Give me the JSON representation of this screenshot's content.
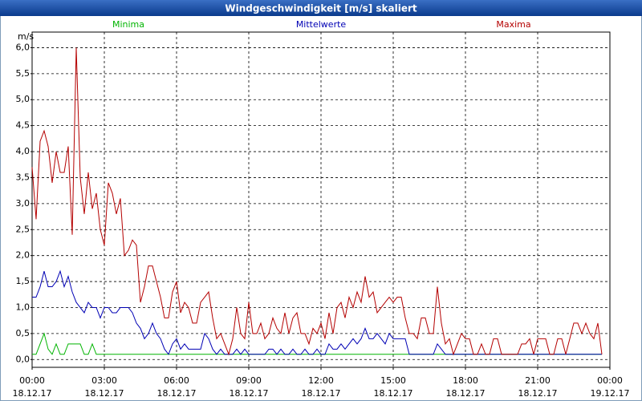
{
  "chart_data": {
    "type": "line",
    "title": "Windgeschwindigkeit [m/s] skaliert",
    "y_label": "m/s",
    "x": [
      0,
      10,
      20,
      30,
      40,
      50,
      60,
      70,
      80,
      90,
      100,
      110,
      120,
      130,
      140,
      150,
      160,
      170,
      180,
      190,
      200,
      210,
      220,
      230,
      240,
      250,
      260,
      270,
      280,
      290,
      300,
      310,
      320,
      330,
      340,
      350,
      360,
      370,
      380,
      390,
      400,
      410,
      420,
      430,
      440,
      450,
      460,
      470,
      480,
      490,
      500,
      510,
      520,
      530,
      540,
      550,
      560,
      570,
      580,
      590,
      600,
      610,
      620,
      630,
      640,
      650,
      660,
      670,
      680,
      690,
      700,
      710,
      720,
      730,
      740,
      750,
      760,
      770,
      780,
      790,
      800,
      810,
      820,
      830,
      840,
      850,
      860,
      870,
      880,
      890,
      900,
      910,
      920,
      930,
      940,
      950,
      960,
      970,
      980,
      990,
      1000,
      1010,
      1020,
      1030,
      1040,
      1050,
      1060,
      1070,
      1080,
      1090,
      1100,
      1110,
      1120,
      1130,
      1140,
      1150,
      1160,
      1170,
      1180,
      1190,
      1200,
      1210,
      1220,
      1230,
      1240,
      1250,
      1260,
      1270,
      1280,
      1290,
      1300,
      1310,
      1320,
      1330,
      1340,
      1350,
      1360,
      1370,
      1380,
      1390,
      1400,
      1410,
      1420
    ],
    "series": [
      {
        "name": "Minima",
        "color": "#00b400",
        "values": [
          0.1,
          0.1,
          0.3,
          0.5,
          0.2,
          0.1,
          0.3,
          0.1,
          0.1,
          0.3,
          0.3,
          0.3,
          0.3,
          0.1,
          0.1,
          0.3,
          0.1,
          0.1,
          0.1,
          0.1,
          0.1,
          0.1,
          0.1,
          0.1,
          0.1,
          0.1,
          0.1,
          0.1,
          0.1,
          0.1,
          0.1,
          0.1,
          0.1,
          0.1,
          0.1,
          0.1,
          0.1,
          0.1,
          0.1,
          0.1,
          0.1,
          0.1,
          0.1,
          0.1,
          0.1,
          0.1,
          0.1,
          0.1,
          0.1,
          0.1,
          0.1,
          0.1,
          0.1,
          0.1,
          0.1,
          0.1,
          0.1,
          0.1,
          0.1,
          0.1,
          0.1,
          0.1,
          0.1,
          0.1,
          0.1,
          0.1,
          0.1,
          0.1,
          0.1,
          0.1,
          0.1,
          0.1,
          0.1,
          0.1,
          0.1,
          0.1,
          0.1,
          0.1,
          0.1,
          0.1,
          0.1,
          0.1,
          0.1,
          0.1,
          0.1,
          0.1,
          0.1,
          0.1,
          0.1,
          0.1,
          0.1,
          0.1,
          0.1,
          0.1,
          0.1,
          0.1,
          0.1,
          0.1,
          0.1,
          0.1,
          0.1,
          0.1,
          0.1,
          0.1,
          0.1,
          0.1,
          0.1,
          0.1,
          0.1,
          0.1,
          0.1,
          0.1,
          0.1,
          0.1,
          0.1,
          0.1,
          0.1,
          0.1,
          0.1,
          0.1,
          0.1,
          0.1,
          0.1,
          0.1,
          0.1,
          0.1,
          0.1,
          0.1,
          0.1,
          0.1,
          0.1,
          0.1,
          0.1,
          0.1,
          0.1,
          0.1,
          0.1,
          0.1,
          0.1,
          0.1,
          0.1,
          0.1,
          0.1
        ]
      },
      {
        "name": "Mittelwerte",
        "color": "#0000b4",
        "values": [
          1.2,
          1.2,
          1.4,
          1.7,
          1.4,
          1.4,
          1.5,
          1.7,
          1.4,
          1.6,
          1.3,
          1.1,
          1.0,
          0.9,
          1.1,
          1.0,
          1.0,
          0.8,
          1.0,
          1.0,
          0.9,
          0.9,
          1.0,
          1.0,
          1.0,
          0.9,
          0.7,
          0.6,
          0.4,
          0.5,
          0.7,
          0.5,
          0.4,
          0.2,
          0.1,
          0.3,
          0.4,
          0.2,
          0.3,
          0.2,
          0.2,
          0.2,
          0.2,
          0.5,
          0.4,
          0.2,
          0.1,
          0.2,
          0.1,
          0.1,
          0.1,
          0.2,
          0.1,
          0.2,
          0.1,
          0.1,
          0.1,
          0.1,
          0.1,
          0.2,
          0.2,
          0.1,
          0.2,
          0.1,
          0.1,
          0.2,
          0.1,
          0.1,
          0.2,
          0.1,
          0.1,
          0.2,
          0.1,
          0.1,
          0.3,
          0.2,
          0.2,
          0.3,
          0.2,
          0.3,
          0.4,
          0.3,
          0.4,
          0.6,
          0.4,
          0.4,
          0.5,
          0.4,
          0.3,
          0.5,
          0.4,
          0.4,
          0.4,
          0.4,
          0.1,
          0.1,
          0.1,
          0.1,
          0.1,
          0.1,
          0.1,
          0.3,
          0.2,
          0.1,
          0.1,
          0.1,
          0.1,
          0.1,
          0.1,
          0.1,
          0.1,
          0.1,
          0.1,
          0.1,
          0.1,
          0.1,
          0.1,
          0.1,
          0.1,
          0.1,
          0.1,
          0.1,
          0.1,
          0.1,
          0.1,
          0.1,
          0.1,
          0.1,
          0.1,
          0.1,
          0.1,
          0.1,
          0.1,
          0.1,
          0.1,
          0.1,
          0.1,
          0.1,
          0.1,
          0.1,
          0.1,
          0.1,
          0.1
        ]
      },
      {
        "name": "Maxima",
        "color": "#b40000",
        "values": [
          3.7,
          2.7,
          4.2,
          4.4,
          4.1,
          3.4,
          4.0,
          3.6,
          3.6,
          4.1,
          2.4,
          6.0,
          3.5,
          2.8,
          3.6,
          2.9,
          3.2,
          2.5,
          2.2,
          3.4,
          3.2,
          2.8,
          3.1,
          2.0,
          2.1,
          2.3,
          2.2,
          1.1,
          1.4,
          1.8,
          1.8,
          1.5,
          1.2,
          0.8,
          0.8,
          1.3,
          1.5,
          0.9,
          1.1,
          1.0,
          0.7,
          0.7,
          1.1,
          1.2,
          1.3,
          0.8,
          0.4,
          0.5,
          0.3,
          0.1,
          0.4,
          1.0,
          0.5,
          0.4,
          1.1,
          0.5,
          0.5,
          0.7,
          0.4,
          0.5,
          0.8,
          0.6,
          0.5,
          0.9,
          0.5,
          0.8,
          0.9,
          0.5,
          0.5,
          0.3,
          0.6,
          0.5,
          0.7,
          0.4,
          0.9,
          0.5,
          1.0,
          1.1,
          0.8,
          1.2,
          1.0,
          1.3,
          1.1,
          1.6,
          1.2,
          1.3,
          0.9,
          1.0,
          1.1,
          1.2,
          1.1,
          1.2,
          1.2,
          0.8,
          0.5,
          0.5,
          0.4,
          0.8,
          0.8,
          0.5,
          0.5,
          1.4,
          0.7,
          0.3,
          0.4,
          0.1,
          0.3,
          0.5,
          0.4,
          0.4,
          0.1,
          0.1,
          0.3,
          0.1,
          0.1,
          0.4,
          0.4,
          0.1,
          0.1,
          0.1,
          0.1,
          0.1,
          0.3,
          0.3,
          0.4,
          0.1,
          0.4,
          0.4,
          0.4,
          0.1,
          0.1,
          0.4,
          0.4,
          0.1,
          0.4,
          0.7,
          0.7,
          0.5,
          0.7,
          0.5,
          0.4,
          0.7,
          0.1
        ]
      }
    ],
    "xlim": [
      0,
      1440
    ],
    "xticks": [
      {
        "value": 0,
        "label": "00:00",
        "date": "18.12.17"
      },
      {
        "value": 180,
        "label": "03:00",
        "date": "18.12.17"
      },
      {
        "value": 360,
        "label": "06:00",
        "date": "18.12.17"
      },
      {
        "value": 540,
        "label": "09:00",
        "date": "18.12.17"
      },
      {
        "value": 720,
        "label": "12:00",
        "date": "18.12.17"
      },
      {
        "value": 900,
        "label": "15:00",
        "date": "18.12.17"
      },
      {
        "value": 1080,
        "label": "18:00",
        "date": "18.12.17"
      },
      {
        "value": 1260,
        "label": "21:00",
        "date": "18.12.17"
      },
      {
        "value": 1440,
        "label": "00:00",
        "date": "19.12.17"
      }
    ],
    "ylim": [
      -0.15,
      6.3
    ],
    "yticks": [
      {
        "value": 0,
        "label": "0,0"
      },
      {
        "value": 0.5,
        "label": "0,5"
      },
      {
        "value": 1,
        "label": "1,0"
      },
      {
        "value": 1.5,
        "label": "1,5"
      },
      {
        "value": 2,
        "label": "2,0"
      },
      {
        "value": 2.5,
        "label": "2,5"
      },
      {
        "value": 3,
        "label": "3,0"
      },
      {
        "value": 3.5,
        "label": "3,5"
      },
      {
        "value": 4,
        "label": "4,0"
      },
      {
        "value": 4.5,
        "label": "4,5"
      },
      {
        "value": 5,
        "label": "5,0"
      },
      {
        "value": 5.5,
        "label": "5,5"
      },
      {
        "value": 6,
        "label": "6,0"
      }
    ],
    "grid": true,
    "legend": "top"
  }
}
